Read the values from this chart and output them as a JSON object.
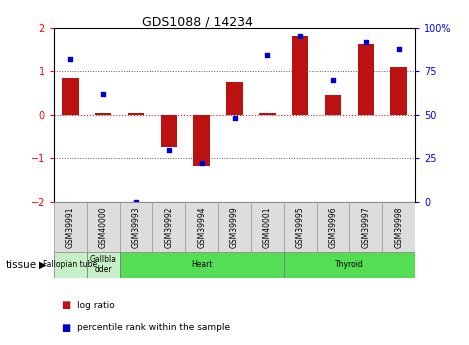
{
  "title": "GDS1088 / 14234",
  "samples": [
    "GSM39991",
    "GSM40000",
    "GSM39993",
    "GSM39992",
    "GSM39994",
    "GSM39999",
    "GSM40001",
    "GSM39995",
    "GSM39996",
    "GSM39997",
    "GSM39998"
  ],
  "log_ratio": [
    0.85,
    0.03,
    0.03,
    -0.75,
    -1.18,
    0.75,
    0.03,
    1.8,
    0.45,
    1.63,
    1.1
  ],
  "percentile_rank": [
    82,
    62,
    0,
    30,
    22,
    48,
    84,
    95,
    70,
    92,
    88
  ],
  "tissue_groups": [
    {
      "label": "Fallopian tube",
      "start": 0,
      "end": 1,
      "color": "#c8f0c8"
    },
    {
      "label": "Gallbla\ndder",
      "start": 1,
      "end": 2,
      "color": "#c8f0c8"
    },
    {
      "label": "Heart",
      "start": 2,
      "end": 7,
      "color": "#55dd55"
    },
    {
      "label": "Thyroid",
      "start": 7,
      "end": 11,
      "color": "#55dd55"
    }
  ],
  "ylim": [
    -2,
    2
  ],
  "bar_color": "#bb1111",
  "dot_color": "#0000cc",
  "zero_line_color": "#cc2222",
  "dotted_line_color": "#555555",
  "sample_box_color": "#dddddd",
  "left_yticks": [
    -2,
    -1,
    0,
    1,
    2
  ],
  "right_ytick_labels": [
    "0",
    "25",
    "50",
    "75",
    "100%"
  ],
  "legend_bar_color": "#bb1111",
  "legend_dot_color": "#0000cc"
}
